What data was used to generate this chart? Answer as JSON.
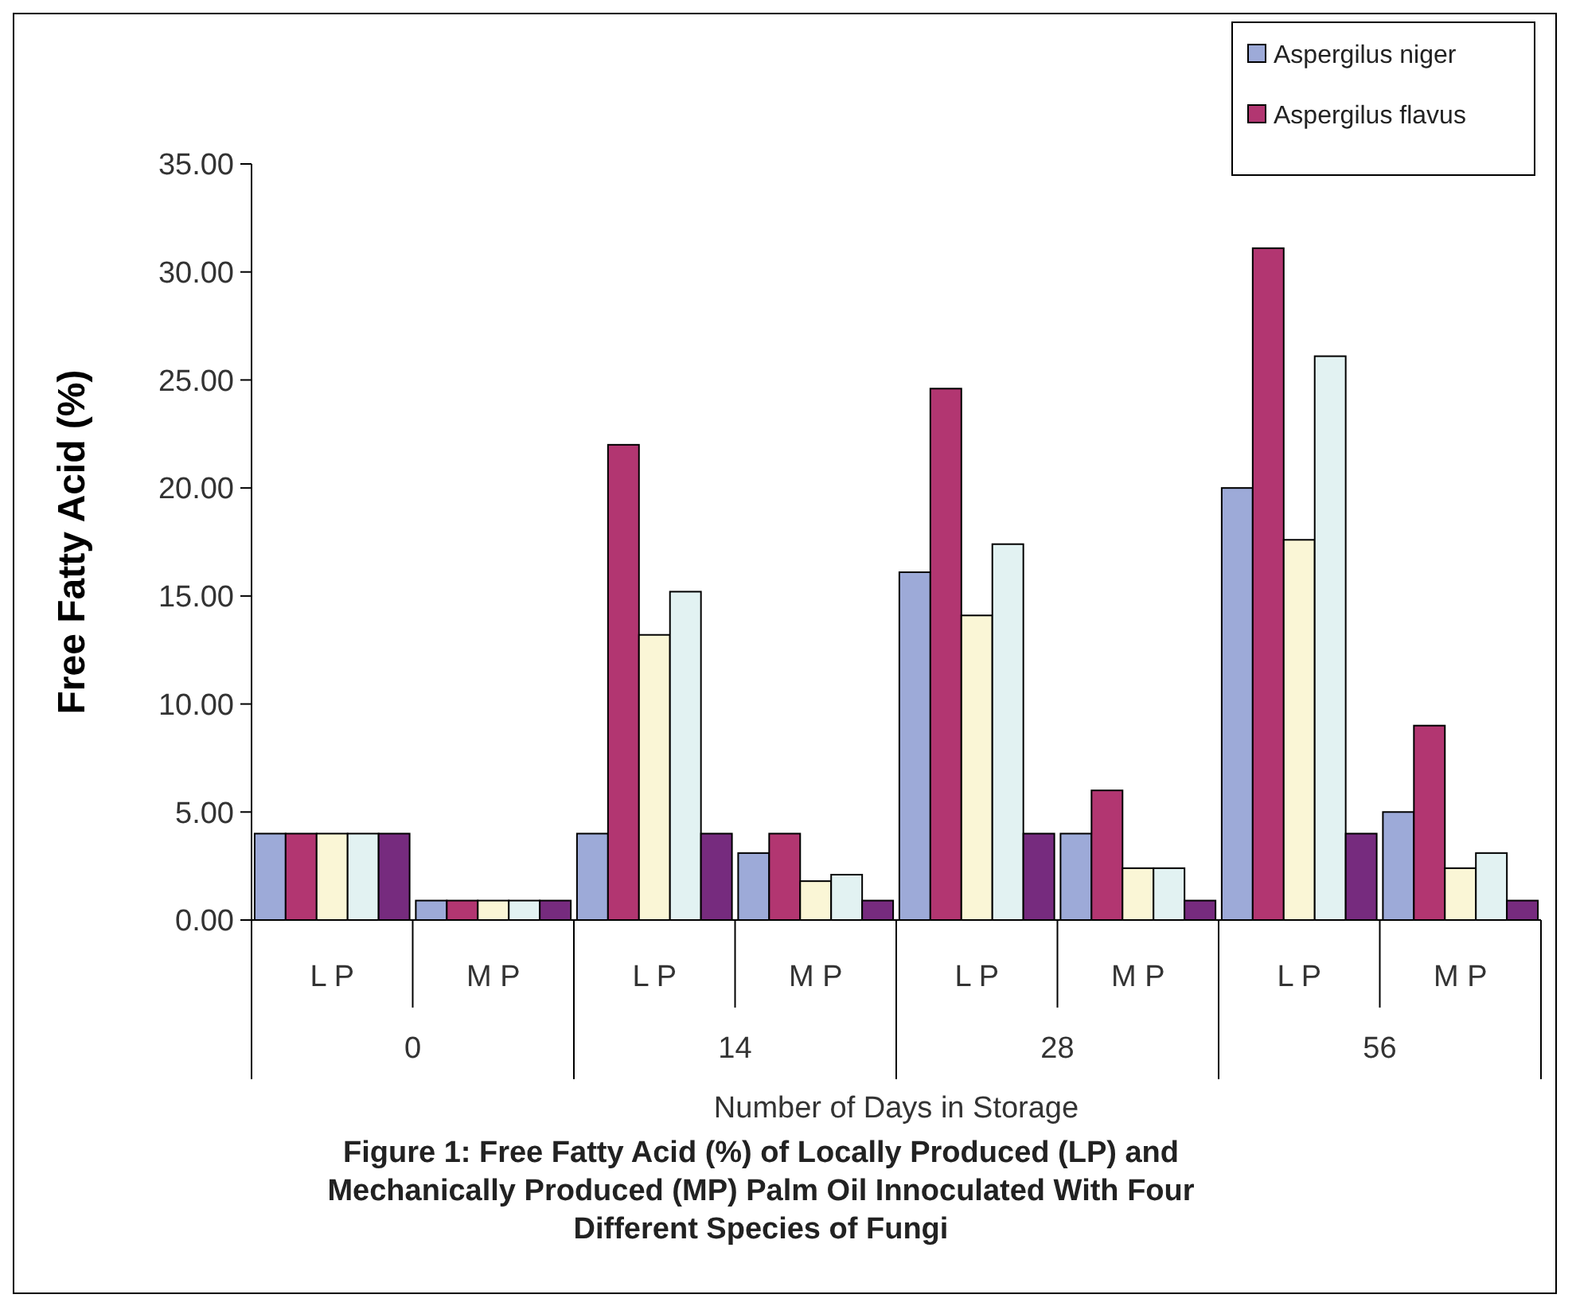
{
  "chart_data": {
    "type": "bar",
    "ylabel": "Free Fatty Acid (%)",
    "xlabel": "Number of Days in Storage",
    "categories": [
      "L P",
      "M P",
      "L P",
      "M P",
      "L P",
      "M P",
      "L P",
      "M P"
    ],
    "series": [
      {
        "name": "Aspergilus niger",
        "color": "#9daad8",
        "values": [
          4.0,
          0.9,
          4.0,
          3.1,
          16.1,
          4.0,
          20.0,
          5.0
        ]
      },
      {
        "name": "Aspergilus flavus",
        "color": "#b23671",
        "values": [
          4.0,
          0.9,
          22.0,
          4.0,
          24.6,
          6.0,
          31.1,
          9.0
        ]
      },
      {
        "color": "#faf6d6",
        "values": [
          4.0,
          0.9,
          13.2,
          1.8,
          14.1,
          2.4,
          17.6,
          2.4
        ]
      },
      {
        "color": "#e2f2f2",
        "values": [
          4.0,
          0.9,
          15.2,
          2.1,
          17.4,
          2.4,
          26.1,
          3.1
        ]
      },
      {
        "color": "#762b7e",
        "values": [
          4.0,
          0.9,
          4.0,
          0.9,
          4.0,
          0.9,
          4.0,
          0.9
        ]
      }
    ],
    "ylim": [
      0,
      35
    ],
    "yticks": [
      {
        "value": 0,
        "label": "0.00"
      },
      {
        "value": 5,
        "label": "5.00"
      },
      {
        "value": 10,
        "label": "10.00"
      },
      {
        "value": 15,
        "label": "15.00"
      },
      {
        "value": 20,
        "label": "20.00"
      },
      {
        "value": 25,
        "label": "25.00"
      },
      {
        "value": 30,
        "label": "30.00"
      },
      {
        "value": 35,
        "label": "35.00"
      }
    ],
    "legend": "top right",
    "annotations": [
      "0",
      "14",
      "28",
      "56",
      "Figure 1: Free Fatty Acid (%) of Locally Produced (LP) and Mechanically Produced (MP) Palm Oil Innoculated With Four Different Species of Fungi"
    ]
  }
}
